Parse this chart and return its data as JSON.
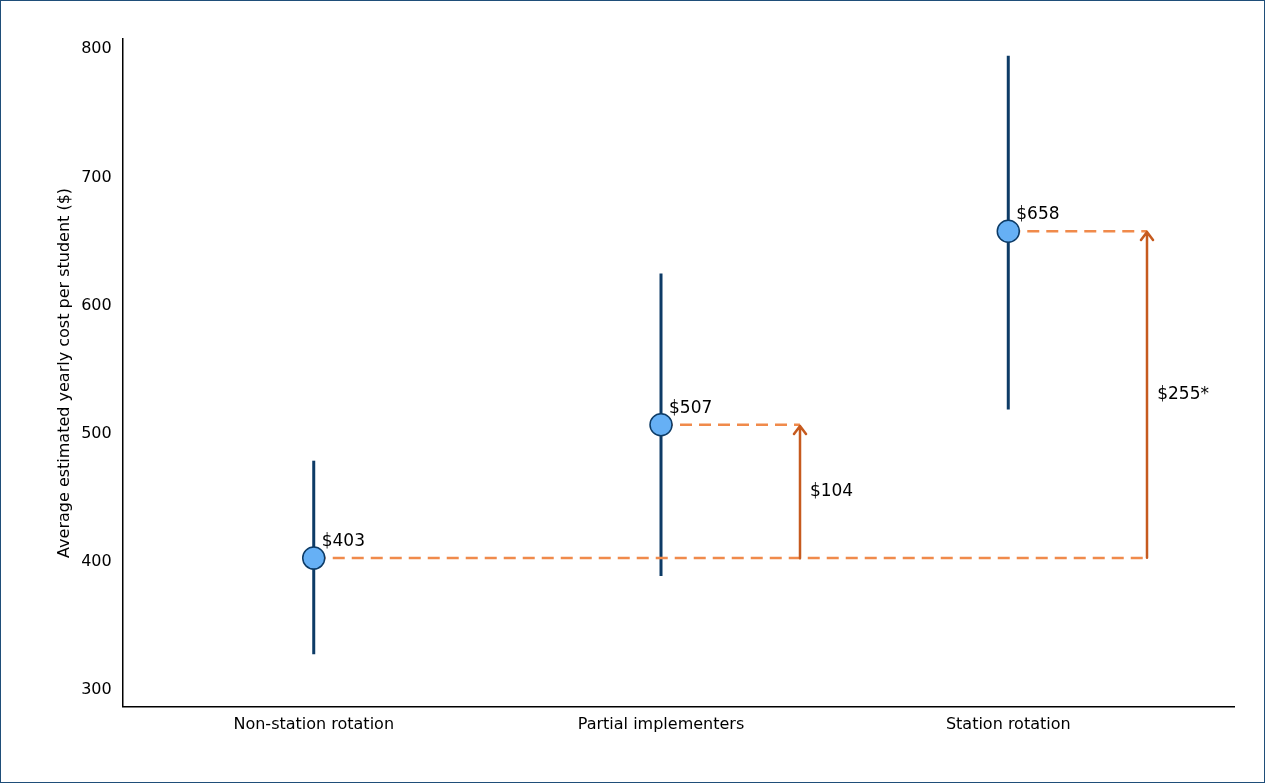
{
  "chart_data": {
    "type": "scatter",
    "ylabel": "Average estimated yearly cost per student ($)",
    "categories": [
      "Non-station rotation",
      "Partial implementers",
      "Station rotation"
    ],
    "values": [
      403,
      507,
      658
    ],
    "errors": [
      [
        328,
        479
      ],
      [
        389,
        625
      ],
      [
        519,
        795
      ]
    ],
    "value_labels": [
      "$403",
      "$507",
      "$658"
    ],
    "color": "#66b0f5",
    "marker": "circle",
    "ylim": [
      287,
      808
    ],
    "yticks": [
      300,
      400,
      500,
      600,
      700,
      800
    ],
    "grid": false,
    "legend": false,
    "ref_lines": [
      {
        "axis": "y",
        "value": 403,
        "color": "#f08a4b",
        "line_style": "dashed"
      },
      {
        "axis": "y",
        "value": 507,
        "color": "#f08a4b",
        "line_style": "dashed"
      },
      {
        "axis": "y",
        "value": 658,
        "color": "#f08a4b",
        "line_style": "dashed"
      }
    ],
    "annotations": [
      "$104",
      "$255*"
    ]
  }
}
